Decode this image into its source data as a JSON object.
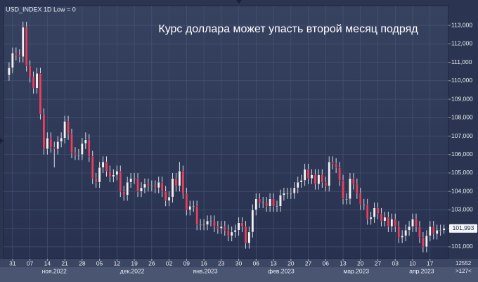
{
  "chart_data": {
    "type": "candlestick",
    "header": "USD_INDEX 1D Low = 0",
    "title": "Курс доллара может упасть второй месяц подряд",
    "open": [
      110300,
      110700,
      111500,
      111400,
      111300,
      112900,
      110800,
      110200,
      109600,
      110400,
      108200,
      106300,
      106900,
      106400,
      106300,
      106700,
      106900,
      107800,
      107100,
      106100,
      106000,
      106000,
      106600,
      106800,
      105900,
      104700,
      104500,
      105300,
      105600,
      105100,
      104800,
      104900,
      105100,
      104000,
      103800,
      104500,
      104700,
      104700,
      104000,
      104200,
      104400,
      104300,
      104300,
      104200,
      104500,
      104000,
      103500,
      103700,
      104700,
      104300,
      105100,
      103900,
      103000,
      103200,
      103200,
      102200,
      102200,
      102200,
      102400,
      102400,
      102100,
      102000,
      102100,
      101900,
      101600,
      101800,
      101900,
      102300,
      102100,
      101200,
      101800,
      103000,
      103600,
      103400,
      103400,
      103200,
      103600,
      103200,
      103200,
      103800,
      103900,
      103900,
      103900,
      104200,
      104500,
      104600,
      105200,
      104700,
      104900,
      104400,
      104900,
      104500,
      104300,
      105600,
      105500,
      105300,
      104600,
      103600,
      103600,
      104700,
      104400,
      103900,
      103300,
      103300,
      102500,
      102600,
      103100,
      102800,
      102400,
      102600,
      102100,
      102500,
      102100,
      101500,
      101600,
      101900,
      102100,
      102500,
      102100,
      101500,
      101000,
      101600,
      102100,
      101700,
      101900,
      101900
    ],
    "high": [
      111000,
      111800,
      111800,
      111700,
      113200,
      113200,
      111100,
      110500,
      110700,
      110700,
      108500,
      107200,
      107200,
      106700,
      107000,
      107200,
      108100,
      108100,
      107400,
      106400,
      106300,
      106900,
      107200,
      107100,
      106200,
      105000,
      105600,
      105900,
      105900,
      105400,
      105200,
      105400,
      105400,
      104300,
      104800,
      105000,
      105000,
      105000,
      104500,
      104700,
      104700,
      104600,
      104600,
      104800,
      104800,
      104300,
      104000,
      105000,
      105000,
      105600,
      105400,
      104200,
      103500,
      103500,
      103500,
      102500,
      102500,
      102700,
      102700,
      102700,
      102400,
      102400,
      102400,
      102200,
      102100,
      102200,
      102600,
      102600,
      102400,
      102100,
      103300,
      103900,
      103900,
      103700,
      103700,
      103900,
      103900,
      103500,
      104100,
      104200,
      104200,
      104200,
      104500,
      104800,
      104900,
      105500,
      105500,
      105200,
      105200,
      105200,
      105200,
      104800,
      105900,
      105900,
      105800,
      105600,
      104900,
      103900,
      105000,
      105000,
      104700,
      104200,
      103600,
      103600,
      102900,
      103400,
      103400,
      103100,
      102900,
      102900,
      102800,
      102800,
      102400,
      101900,
      102200,
      102400,
      102800,
      102800,
      102400,
      101800,
      101900,
      102400,
      102400,
      102200,
      102200,
      102200
    ],
    "low": [
      110000,
      110400,
      111100,
      111000,
      111000,
      110500,
      109900,
      109300,
      109300,
      107900,
      106000,
      106000,
      106100,
      105300,
      106000,
      106400,
      106600,
      106800,
      105800,
      105700,
      105700,
      105700,
      106300,
      105600,
      104400,
      104200,
      104200,
      105000,
      104800,
      104500,
      104500,
      104600,
      103700,
      103500,
      103500,
      104200,
      104400,
      103700,
      103700,
      103900,
      104000,
      104000,
      103900,
      103900,
      103700,
      103200,
      103200,
      103400,
      104000,
      104000,
      103600,
      102700,
      102700,
      102900,
      101900,
      101900,
      101900,
      101900,
      102100,
      101800,
      101700,
      101700,
      101600,
      101300,
      101300,
      101500,
      101600,
      101800,
      100900,
      100900,
      101500,
      102700,
      103100,
      103100,
      102900,
      102900,
      102900,
      102900,
      102900,
      103500,
      103600,
      103600,
      103600,
      103900,
      104200,
      104300,
      104400,
      104400,
      104100,
      104100,
      104200,
      104000,
      104000,
      105200,
      105000,
      104300,
      103300,
      103300,
      103300,
      104100,
      103600,
      103000,
      103000,
      102200,
      102200,
      102300,
      102500,
      102100,
      102100,
      101800,
      101800,
      101800,
      101200,
      101200,
      101300,
      101600,
      101800,
      101800,
      101200,
      100700,
      100700,
      101300,
      101400,
      101400,
      101600,
      101700
    ],
    "close": [
      110700,
      111500,
      111400,
      111300,
      112900,
      110800,
      110200,
      109600,
      110400,
      108200,
      106300,
      106900,
      106400,
      106300,
      106700,
      106900,
      107800,
      107100,
      106100,
      106000,
      106000,
      106600,
      106800,
      105900,
      104700,
      104500,
      105300,
      105600,
      105100,
      104800,
      104900,
      105100,
      104000,
      103800,
      104500,
      104700,
      104700,
      104000,
      104200,
      104400,
      104300,
      104300,
      104200,
      104500,
      104000,
      103500,
      103700,
      104700,
      104300,
      105100,
      103900,
      103000,
      103200,
      103200,
      102200,
      102200,
      102200,
      102400,
      102400,
      102100,
      102000,
      102100,
      101900,
      101600,
      101800,
      101900,
      102300,
      102100,
      101200,
      101800,
      103000,
      103600,
      103400,
      103400,
      103200,
      103600,
      103200,
      103200,
      103800,
      103900,
      103900,
      103900,
      104200,
      104500,
      104600,
      105200,
      104700,
      104900,
      104400,
      104900,
      104500,
      104300,
      105600,
      105500,
      105300,
      104600,
      103600,
      103600,
      104700,
      104400,
      103900,
      103300,
      103300,
      102500,
      102600,
      103100,
      102800,
      102400,
      102600,
      102100,
      102500,
      102100,
      101500,
      101600,
      101900,
      102100,
      102500,
      102100,
      101500,
      101000,
      101600,
      102100,
      101700,
      101900,
      101900,
      101993
    ],
    "up_color": "#f2f2f2",
    "down_color": "#e8415f",
    "wick_color": "#d8dbe4",
    "xlim": [
      -1.6,
      126.3
    ],
    "xticks": [
      {
        "value": 1,
        "label": "31"
      },
      {
        "value": 6,
        "label": "07"
      },
      {
        "value": 11,
        "label": "14"
      },
      {
        "value": 16,
        "label": "21"
      },
      {
        "value": 21,
        "label": "28"
      },
      {
        "value": 26,
        "label": "05"
      },
      {
        "value": 31,
        "label": "12"
      },
      {
        "value": 36,
        "label": "19"
      },
      {
        "value": 41,
        "label": "26"
      },
      {
        "value": 46,
        "label": "02"
      },
      {
        "value": 51,
        "label": "09"
      },
      {
        "value": 56,
        "label": "16"
      },
      {
        "value": 61,
        "label": "23"
      },
      {
        "value": 66,
        "label": "30"
      },
      {
        "value": 71,
        "label": "06"
      },
      {
        "value": 76,
        "label": "13"
      },
      {
        "value": 81,
        "label": "20"
      },
      {
        "value": 86,
        "label": "27"
      },
      {
        "value": 91,
        "label": "06"
      },
      {
        "value": 96,
        "label": "13"
      },
      {
        "value": 101,
        "label": "20"
      },
      {
        "value": 106,
        "label": "27"
      },
      {
        "value": 111,
        "label": "03"
      },
      {
        "value": 116,
        "label": "10"
      },
      {
        "value": 121,
        "label": "17"
      }
    ],
    "month_labels": [
      {
        "value": 13,
        "label": "ноя.2022"
      },
      {
        "value": 35.4,
        "label": "дек.2022"
      },
      {
        "value": 56.4,
        "label": "янв.2023"
      },
      {
        "value": 78.2,
        "label": "фев.2023"
      },
      {
        "value": 99.8,
        "label": "мар.2023"
      },
      {
        "value": 118.6,
        "label": "апр.2023"
      }
    ],
    "ylim": [
      100350,
      114070
    ],
    "yticks": [
      {
        "value": 101000,
        "label": "101,000"
      },
      {
        "value": 102000,
        "label": "102,000"
      },
      {
        "value": 103000,
        "label": "103,000"
      },
      {
        "value": 104000,
        "label": "104,000"
      },
      {
        "value": 105000,
        "label": "105,000"
      },
      {
        "value": 106000,
        "label": "106,000"
      },
      {
        "value": 107000,
        "label": "107,000"
      },
      {
        "value": 108000,
        "label": "108,000"
      },
      {
        "value": 109000,
        "label": "109,000"
      },
      {
        "value": 110000,
        "label": "110,000"
      },
      {
        "value": 111000,
        "label": "111,000"
      },
      {
        "value": 112000,
        "label": "112,000"
      },
      {
        "value": 113000,
        "label": "113,000"
      }
    ],
    "last_price": {
      "value": 101993,
      "label": "101,993"
    },
    "grid": true,
    "footer_count": "12552",
    "footer_zoom": ">127<"
  }
}
